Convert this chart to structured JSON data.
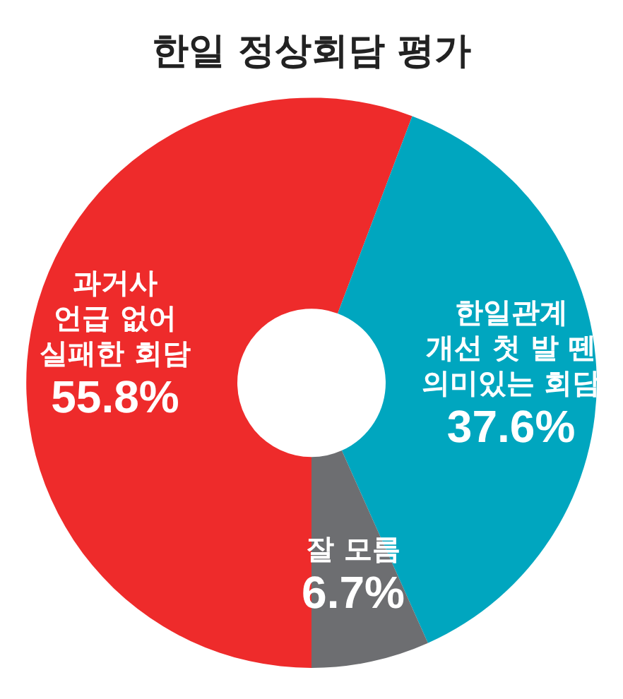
{
  "chart_data": {
    "type": "donut",
    "title": "한일 정상회담 평가",
    "categories": [
      "과거사\n언급 없어\n실패한 회담",
      "한일관계\n개선 첫 발 뗀\n의미있는 회담",
      "잘 모름"
    ],
    "values": [
      55.8,
      37.6,
      6.7
    ],
    "colors": [
      "#ee2b2b",
      "#00a6bf",
      "#6d6e71"
    ],
    "value_labels": [
      "55.8%",
      "37.6%",
      "6.7%"
    ],
    "legend": false
  }
}
